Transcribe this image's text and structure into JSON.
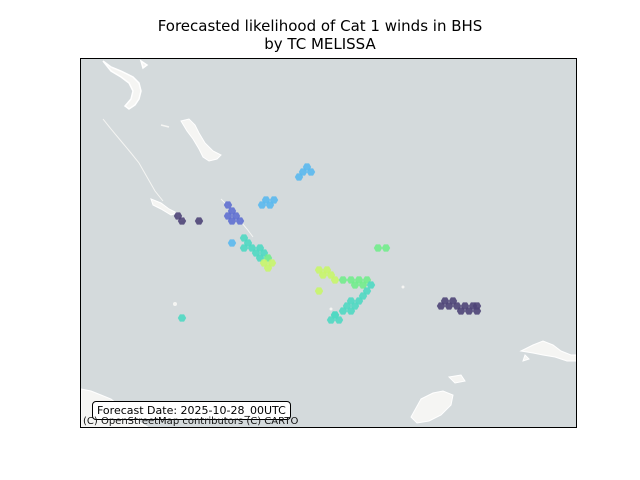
{
  "title_line1": "Forecasted likelihood of Cat 1 winds in BHS",
  "title_line2": "by TC MELISSA",
  "forecast_label": "Forecast Date: 2025-10-28_00UTC",
  "attribution": "(C) OpenStreetMap contributors (C) CARTO",
  "colors": {
    "ocean": "#d4dadc",
    "land": "#f5f5f3",
    "level_dark": "#4e4477",
    "level_indigo": "#5f6fd0",
    "level_blue": "#5ab8ee",
    "level_teal": "#4fd8c2",
    "level_green": "#72ec8c",
    "level_lime": "#c8f56a"
  }
}
